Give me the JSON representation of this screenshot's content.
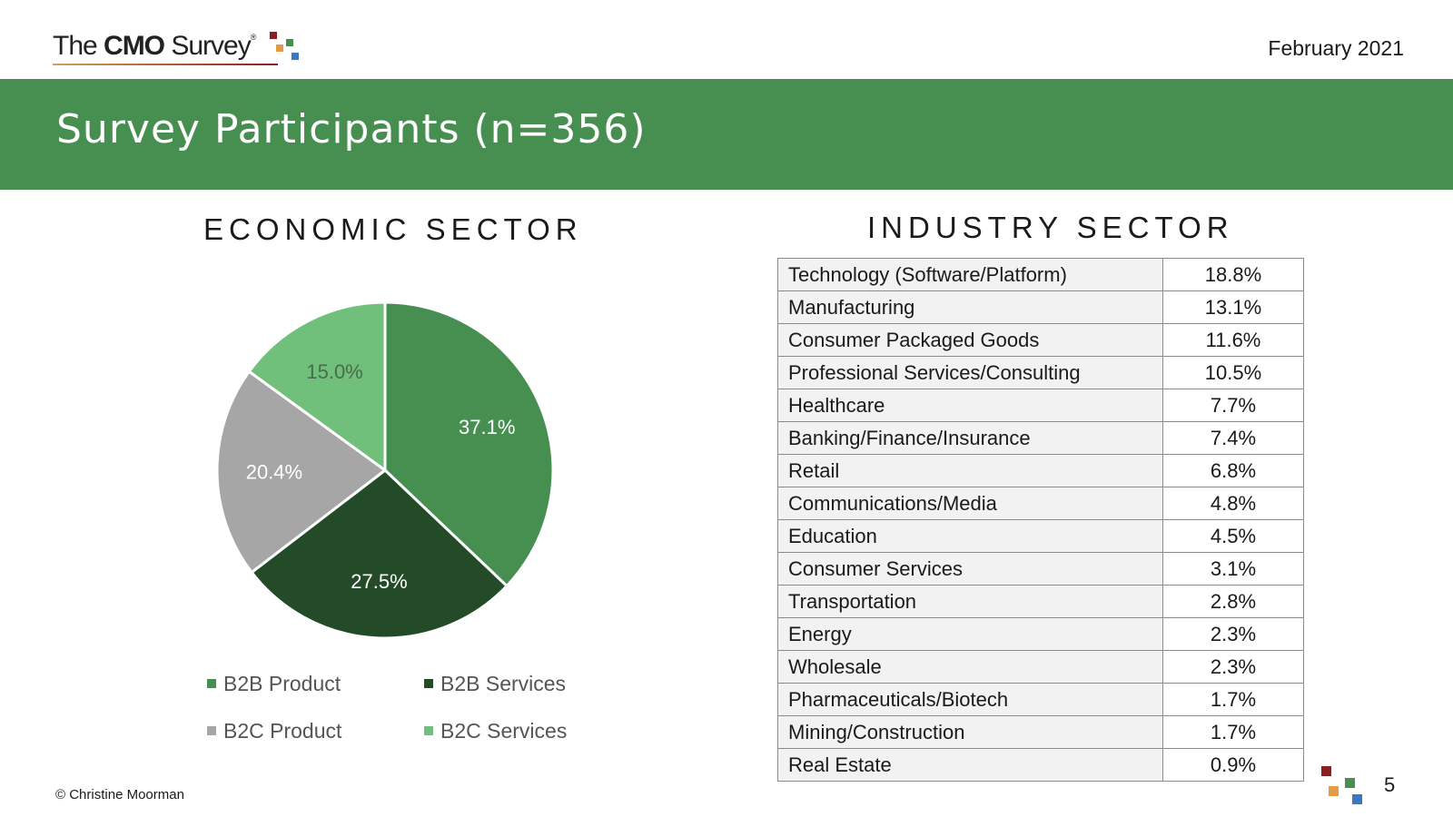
{
  "header": {
    "logo_text_light": "The ",
    "logo_text_bold": "CMO",
    "logo_text_end": " Survey",
    "logo_reg": "®",
    "date": "February 2021"
  },
  "banner": {
    "title": "Survey Participants (n=356)"
  },
  "colors": {
    "banner": "#478f51",
    "b2b_product": "#478f51",
    "b2b_services": "#234b28",
    "b2c_product": "#a6a6a6",
    "b2c_services": "#70bf7a",
    "logo_red": "#8a1f1f",
    "logo_orange": "#e39b45",
    "logo_green": "#478f51",
    "logo_blue": "#3a78c2"
  },
  "chart_data": [
    {
      "type": "pie",
      "title": "ECONOMIC SECTOR",
      "categories": [
        "B2B Product",
        "B2B Services",
        "B2C Product",
        "B2C Services"
      ],
      "values": [
        37.1,
        27.5,
        20.4,
        15.0
      ],
      "labels": [
        "37.1%",
        "27.5%",
        "20.4%",
        "15.0%"
      ],
      "legend": "bottom"
    },
    {
      "type": "table",
      "title": "INDUSTRY SECTOR",
      "rows": [
        {
          "name": "Technology (Software/Platform)",
          "value": "18.8%"
        },
        {
          "name": "Manufacturing",
          "value": "13.1%"
        },
        {
          "name": "Consumer Packaged Goods",
          "value": "11.6%"
        },
        {
          "name": "Professional Services/Consulting",
          "value": "10.5%"
        },
        {
          "name": "Healthcare",
          "value": "7.7%"
        },
        {
          "name": "Banking/Finance/Insurance",
          "value": "7.4%"
        },
        {
          "name": "Retail",
          "value": "6.8%"
        },
        {
          "name": "Communications/Media",
          "value": "4.8%"
        },
        {
          "name": "Education",
          "value": "4.5%"
        },
        {
          "name": "Consumer Services",
          "value": "3.1%"
        },
        {
          "name": "Transportation",
          "value": "2.8%"
        },
        {
          "name": "Energy",
          "value": "2.3%"
        },
        {
          "name": "Wholesale",
          "value": "2.3%"
        },
        {
          "name": "Pharmaceuticals/Biotech",
          "value": "1.7%"
        },
        {
          "name": "Mining/Construction",
          "value": "1.7%"
        },
        {
          "name": "Real Estate",
          "value": "0.9%"
        }
      ]
    }
  ],
  "footer": {
    "copyright": "© Christine Moorman",
    "page_number": "5"
  }
}
